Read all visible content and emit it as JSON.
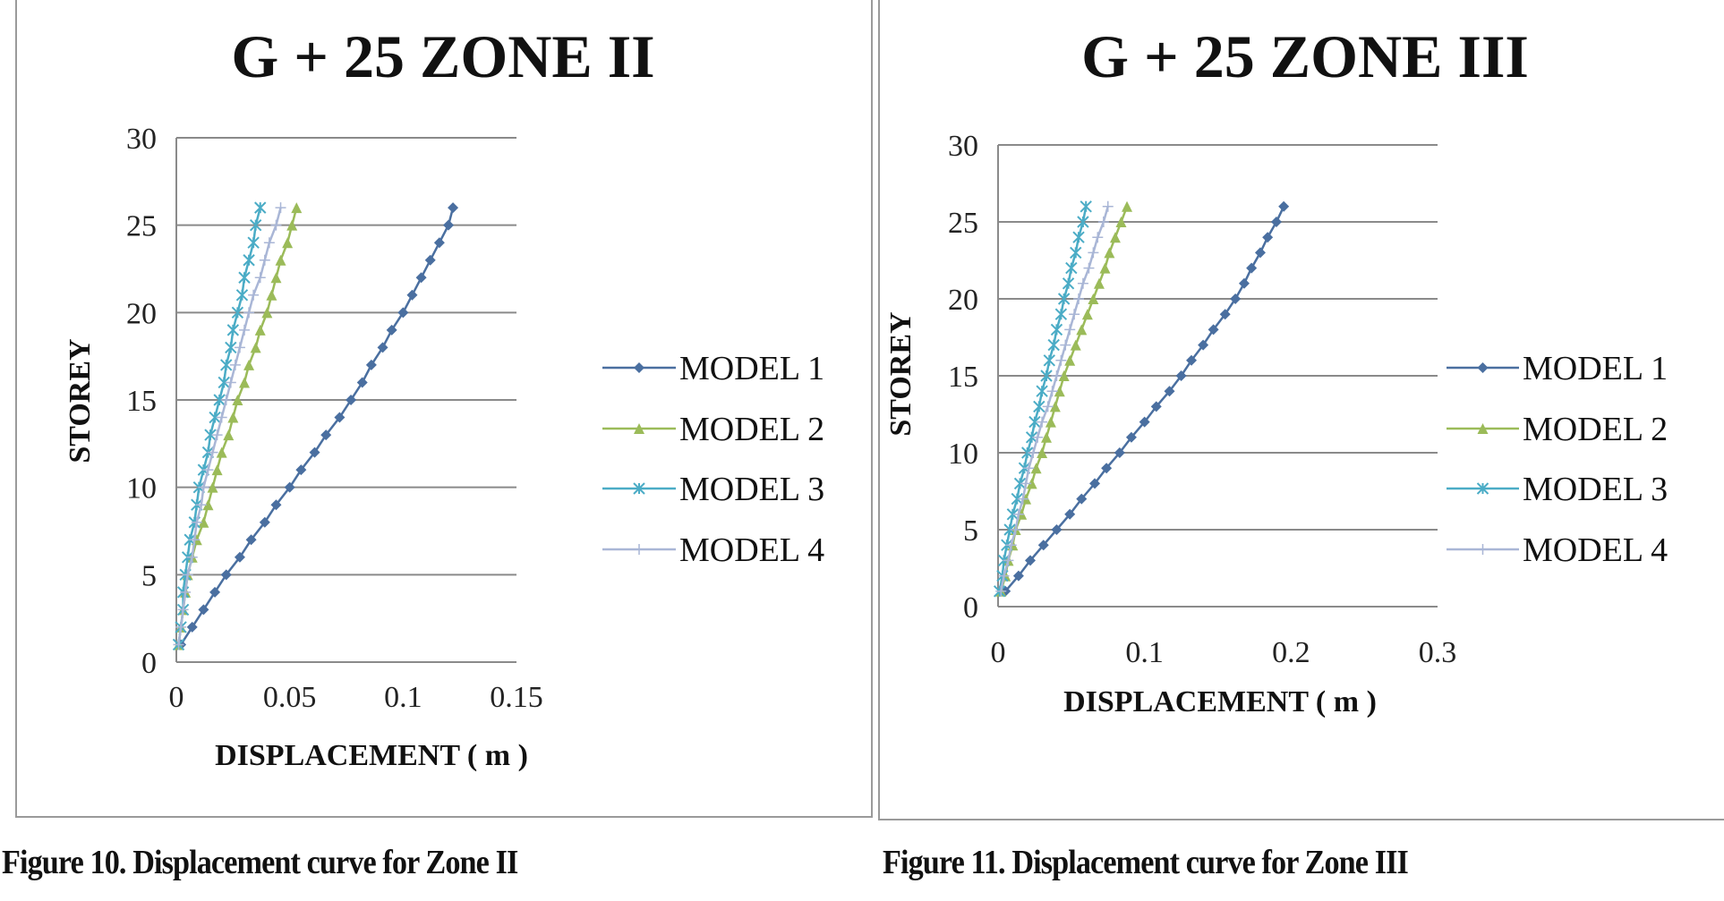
{
  "colors": {
    "model1": "#4a6fa0",
    "model2": "#9bbb59",
    "model3": "#4bacc6",
    "model4": "#a9b6d6",
    "grid": "#8a8a8a",
    "frame": "#9a9a9a"
  },
  "captions": [
    "Figure 10. Displacement curve for Zone II",
    "Figure 11. Displacement curve for Zone III"
  ],
  "chart_data": [
    {
      "type": "line",
      "title": "G + 25 ZONE II",
      "xlabel": "DISPLACEMENT ( m )",
      "ylabel": "STOREY",
      "xlim": [
        0,
        0.15
      ],
      "ylim": [
        0,
        30
      ],
      "xticks": [
        "0",
        "0.05",
        "0.1",
        "0.15"
      ],
      "yticks": [
        "0",
        "5",
        "10",
        "15",
        "20",
        "25",
        "30"
      ],
      "grid": "horizontal",
      "legend": "right",
      "y": [
        1,
        2,
        3,
        4,
        5,
        6,
        7,
        8,
        9,
        10,
        11,
        12,
        13,
        14,
        15,
        16,
        17,
        18,
        19,
        20,
        21,
        22,
        23,
        24,
        25,
        26
      ],
      "series": [
        {
          "name": "MODEL 1",
          "marker": "diamond",
          "x": [
            0.002,
            0.007,
            0.012,
            0.017,
            0.022,
            0.028,
            0.033,
            0.039,
            0.044,
            0.05,
            0.055,
            0.061,
            0.066,
            0.072,
            0.077,
            0.082,
            0.086,
            0.091,
            0.095,
            0.1,
            0.104,
            0.108,
            0.112,
            0.116,
            0.12,
            0.122
          ]
        },
        {
          "name": "MODEL 2",
          "marker": "triangle",
          "x": [
            0.001,
            0.002,
            0.003,
            0.004,
            0.005,
            0.007,
            0.009,
            0.012,
            0.014,
            0.016,
            0.018,
            0.02,
            0.023,
            0.025,
            0.027,
            0.03,
            0.032,
            0.035,
            0.037,
            0.04,
            0.042,
            0.044,
            0.046,
            0.049,
            0.051,
            0.053
          ]
        },
        {
          "name": "MODEL 3",
          "marker": "star",
          "x": [
            0.001,
            0.002,
            0.003,
            0.003,
            0.004,
            0.005,
            0.006,
            0.008,
            0.009,
            0.01,
            0.012,
            0.014,
            0.015,
            0.017,
            0.019,
            0.021,
            0.022,
            0.024,
            0.025,
            0.027,
            0.029,
            0.03,
            0.032,
            0.034,
            0.035,
            0.037
          ]
        },
        {
          "name": "MODEL 4",
          "marker": "plus",
          "x": [
            0.001,
            0.002,
            0.003,
            0.004,
            0.005,
            0.007,
            0.008,
            0.009,
            0.011,
            0.012,
            0.014,
            0.016,
            0.018,
            0.02,
            0.022,
            0.024,
            0.026,
            0.028,
            0.03,
            0.032,
            0.034,
            0.037,
            0.039,
            0.041,
            0.044,
            0.046
          ]
        }
      ]
    },
    {
      "type": "line",
      "title": "G + 25 ZONE III",
      "xlabel": "DISPLACEMENT ( m )",
      "ylabel": "STOREY",
      "xlim": [
        0,
        0.3
      ],
      "ylim": [
        0,
        30
      ],
      "xticks": [
        "0",
        "0.1",
        "0.2",
        "0.3"
      ],
      "yticks": [
        "0",
        "5",
        "10",
        "15",
        "20",
        "25",
        "30"
      ],
      "grid": "horizontal",
      "legend": "right",
      "y": [
        1,
        2,
        3,
        4,
        5,
        6,
        7,
        8,
        9,
        10,
        11,
        12,
        13,
        14,
        15,
        16,
        17,
        18,
        19,
        20,
        21,
        22,
        23,
        24,
        25,
        26
      ],
      "series": [
        {
          "name": "MODEL 1",
          "marker": "diamond",
          "x": [
            0.005,
            0.014,
            0.022,
            0.031,
            0.04,
            0.049,
            0.057,
            0.066,
            0.074,
            0.083,
            0.091,
            0.1,
            0.108,
            0.117,
            0.125,
            0.132,
            0.14,
            0.147,
            0.155,
            0.162,
            0.168,
            0.173,
            0.179,
            0.184,
            0.19,
            0.195
          ]
        },
        {
          "name": "MODEL 2",
          "marker": "triangle",
          "x": [
            0.002,
            0.005,
            0.007,
            0.01,
            0.012,
            0.016,
            0.019,
            0.023,
            0.026,
            0.03,
            0.033,
            0.036,
            0.039,
            0.042,
            0.045,
            0.049,
            0.053,
            0.057,
            0.061,
            0.065,
            0.069,
            0.073,
            0.076,
            0.08,
            0.084,
            0.088
          ]
        },
        {
          "name": "MODEL 3",
          "marker": "star",
          "x": [
            0.001,
            0.003,
            0.004,
            0.006,
            0.008,
            0.01,
            0.013,
            0.015,
            0.018,
            0.02,
            0.023,
            0.025,
            0.028,
            0.03,
            0.033,
            0.035,
            0.038,
            0.04,
            0.043,
            0.045,
            0.048,
            0.05,
            0.053,
            0.055,
            0.058,
            0.06
          ]
        },
        {
          "name": "MODEL 4",
          "marker": "plus",
          "x": [
            0.002,
            0.004,
            0.007,
            0.009,
            0.012,
            0.014,
            0.017,
            0.019,
            0.021,
            0.024,
            0.027,
            0.03,
            0.034,
            0.037,
            0.04,
            0.043,
            0.046,
            0.049,
            0.052,
            0.055,
            0.058,
            0.062,
            0.065,
            0.068,
            0.072,
            0.075
          ]
        }
      ]
    }
  ]
}
